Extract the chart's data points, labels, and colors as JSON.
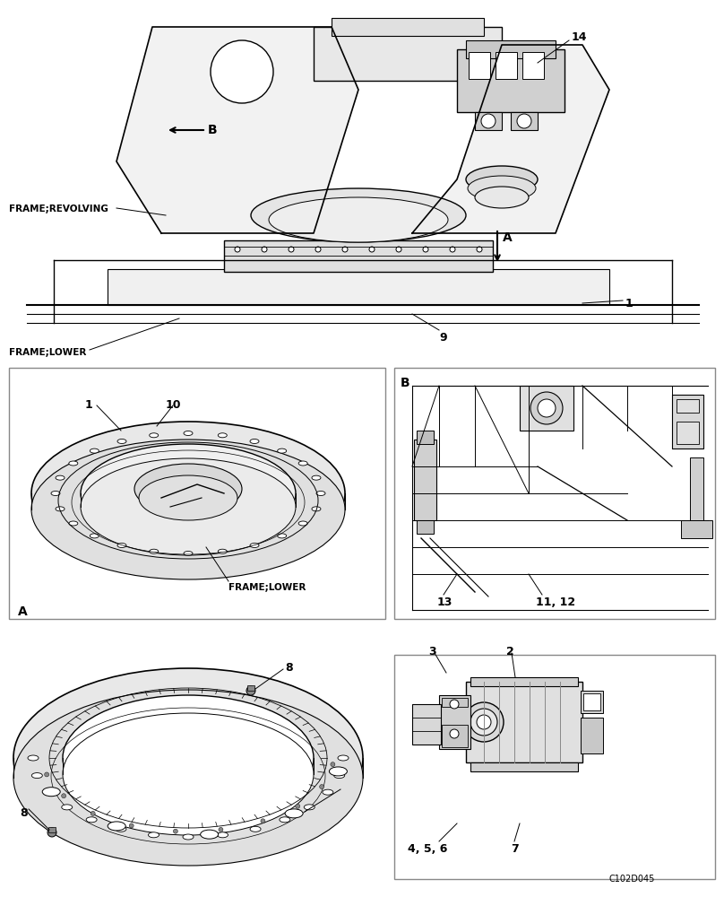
{
  "title": "",
  "background_color": "#ffffff",
  "image_code": "C102D045",
  "labels": {
    "frame_revolving": "FRAME;REVOLVING",
    "frame_lower_top": "FRAME;LOWER",
    "frame_lower_box": "FRAME;LOWER",
    "label_A_top": "A",
    "label_B_top": "B",
    "label_A_box": "A",
    "label_B_box": "B",
    "num_1_top": "1",
    "num_9": "9",
    "num_14": "14",
    "num_1_box": "1",
    "num_10": "10",
    "num_8_top": "8",
    "num_8_left": "8",
    "num_2": "2",
    "num_3": "3",
    "num_4_5_6": "4, 5, 6",
    "num_7": "7",
    "num_11_12": "11, 12",
    "num_13": "13"
  },
  "colors": {
    "line": "#000000",
    "fill_light": "#e8e8e8",
    "fill_gray": "#c0c0c0",
    "white": "#ffffff",
    "box_border": "#555555"
  }
}
